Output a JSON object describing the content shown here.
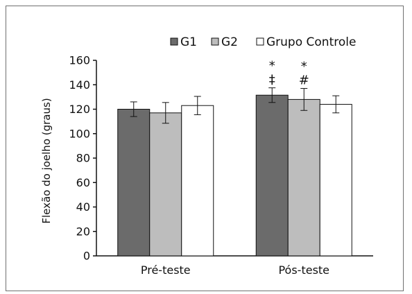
{
  "chart_data": {
    "type": "bar",
    "title": "",
    "xlabel": "",
    "ylabel": "Flexão do joelho (graus)",
    "ylim": [
      0,
      160
    ],
    "yticks": [
      0,
      20,
      40,
      60,
      80,
      100,
      120,
      140,
      160
    ],
    "categories": [
      "Pré-teste",
      "Pós-teste"
    ],
    "grid": false,
    "legend_position": "top",
    "series": [
      {
        "name": "G1",
        "color": "#6b6b6b",
        "values": [
          120,
          131.5
        ],
        "errors": [
          6,
          6
        ]
      },
      {
        "name": "G2",
        "color": "#bdbdbd",
        "values": [
          117,
          128
        ],
        "errors": [
          8.5,
          9
        ]
      },
      {
        "name": "Grupo Controle",
        "color": "#ffffff",
        "values": [
          123,
          124
        ],
        "errors": [
          7.5,
          7
        ]
      }
    ],
    "annotations": [
      {
        "category": "Pós-teste",
        "series": "G1",
        "lines": [
          "*",
          "‡"
        ]
      },
      {
        "category": "Pós-teste",
        "series": "G2",
        "lines": [
          "*",
          "#"
        ]
      }
    ]
  }
}
